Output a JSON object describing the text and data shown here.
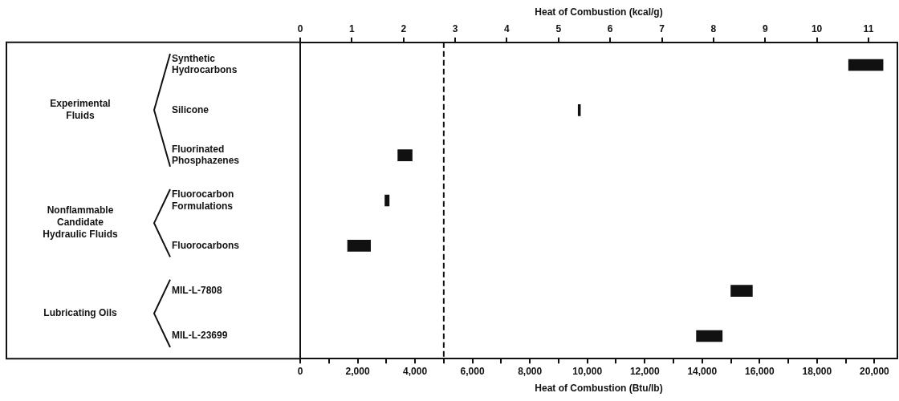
{
  "chart_data": {
    "type": "bar",
    "orientation": "horizontal",
    "xlabel": "Heat of Combustion (Btu/lb)",
    "x2label": "Heat of Combustion (kcal/g)",
    "categories": [
      "Synthetic Hydrocarbons",
      "Silicone",
      "Fluorinated Phosphazenes",
      "Fluorocarbon Formulations",
      "Fluorocarbons",
      "MIL-L-7808",
      "MIL-L-23699"
    ],
    "base": [
      19100,
      9680,
      3400,
      2950,
      1650,
      15000,
      13800
    ],
    "values": [
      1200,
      80,
      500,
      150,
      800,
      750,
      900
    ],
    "color": "#111111",
    "xlim": [
      0,
      20800
    ],
    "xticks": [
      0,
      {
        "value": 1000,
        "label": null
      },
      {
        "value": 2000,
        "label": "2,000"
      },
      {
        "value": 3000,
        "label": null
      },
      {
        "value": 4000,
        "label": "4,000"
      },
      {
        "value": 5000,
        "label": null
      },
      {
        "value": 6000,
        "label": "6,000"
      },
      {
        "value": 7000,
        "label": null
      },
      {
        "value": 8000,
        "label": "8,000"
      },
      {
        "value": 9000,
        "label": null
      },
      {
        "value": 10000,
        "label": "10,000"
      },
      {
        "value": 11000,
        "label": null
      },
      {
        "value": 12000,
        "label": "12,000"
      },
      {
        "value": 13000,
        "label": null
      },
      {
        "value": 14000,
        "label": "14,000"
      },
      {
        "value": 15000,
        "label": null
      },
      {
        "value": 16000,
        "label": "16,000"
      },
      {
        "value": 17000,
        "label": null
      },
      {
        "value": 18000,
        "label": "18,000"
      },
      {
        "value": 19000,
        "label": null
      },
      {
        "value": 20000,
        "label": "20,000"
      }
    ],
    "x2lim": [
      0,
      11.56
    ],
    "x2ticks": [
      0,
      1,
      2,
      3,
      4,
      5,
      6,
      7,
      8,
      9,
      10,
      11
    ],
    "ref_lines": [
      {
        "axis": "x",
        "value": 5000,
        "line_style": "dashed"
      }
    ],
    "annotations": [
      "Experimental Fluids",
      "Nonflammable Candidate Hydraulic Fluids",
      "Lubricating Oils"
    ],
    "grid": false,
    "legend": false
  }
}
